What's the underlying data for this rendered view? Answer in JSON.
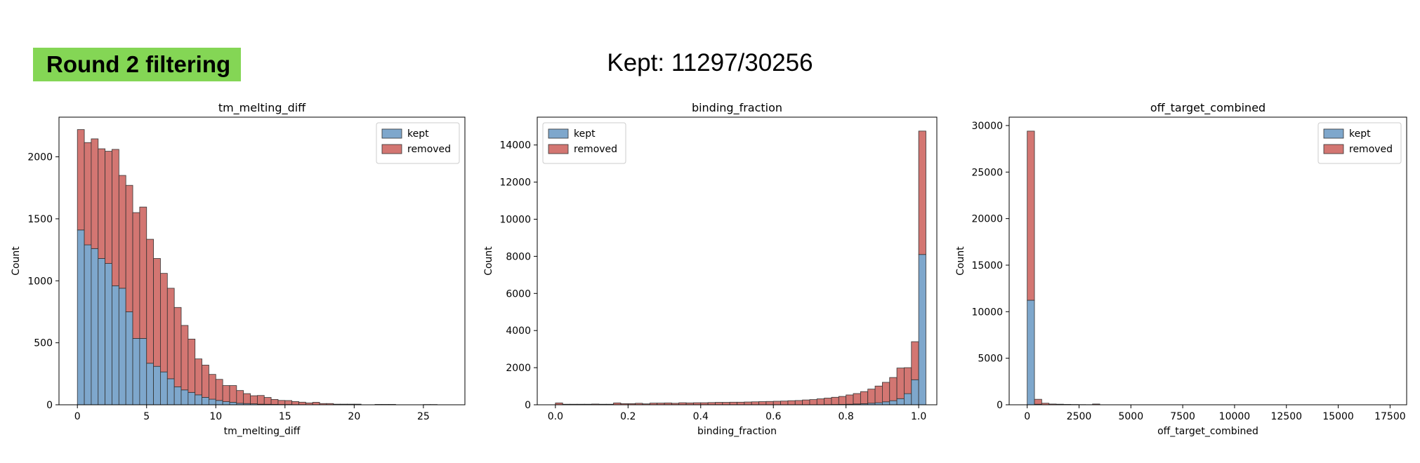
{
  "header": {
    "badge_label": "Round 2 filtering",
    "summary": "Kept: 11297/30256"
  },
  "colors": {
    "kept": "#7ea7cc",
    "removed": "#d37672",
    "edge": "#333333",
    "badge": "#84d655"
  },
  "chart_data": [
    {
      "type": "bar",
      "stacked": true,
      "title": "tm_melting_diff",
      "xlabel": "tm_melting_diff",
      "ylabel": "Count",
      "xlim": [
        -1.33,
        28.0
      ],
      "ylim": [
        0,
        2320
      ],
      "xticks": [
        0,
        5,
        10,
        15,
        20,
        25
      ],
      "yticks": [
        0,
        500,
        1000,
        1500,
        2000
      ],
      "legend": "top-right",
      "bin_start": 0,
      "bin_width": 0.5,
      "series": [
        {
          "name": "kept",
          "values": [
            1410,
            1290,
            1260,
            1180,
            1140,
            960,
            940,
            750,
            535,
            535,
            335,
            310,
            265,
            210,
            145,
            120,
            100,
            80,
            60,
            45,
            35,
            25,
            20,
            12,
            10,
            8,
            5,
            4,
            3,
            2,
            2,
            1,
            1,
            0,
            0,
            0,
            0,
            0,
            0,
            0,
            0,
            0,
            0,
            0,
            0,
            0,
            0,
            0,
            0,
            0,
            0,
            0,
            0,
            0
          ]
        },
        {
          "name": "removed",
          "values": [
            810,
            825,
            885,
            885,
            905,
            1100,
            910,
            1020,
            1015,
            1060,
            1000,
            870,
            795,
            730,
            640,
            520,
            430,
            290,
            260,
            200,
            170,
            130,
            135,
            103,
            80,
            65,
            70,
            55,
            40,
            33,
            32,
            25,
            20,
            15,
            20,
            10,
            10,
            5,
            5,
            5,
            5,
            0,
            0,
            3,
            3,
            3,
            0,
            0,
            0,
            0,
            2,
            2,
            0,
            0
          ]
        }
      ]
    },
    {
      "type": "bar",
      "stacked": true,
      "title": "binding_fraction",
      "xlabel": "binding_fraction",
      "ylabel": "Count",
      "xlim": [
        -0.05,
        1.05
      ],
      "ylim": [
        0,
        15500
      ],
      "xticks": [
        0.0,
        0.2,
        0.4,
        0.6,
        0.8,
        1.0
      ],
      "yticks": [
        0,
        2000,
        4000,
        6000,
        8000,
        10000,
        12000,
        14000
      ],
      "legend": "top-left",
      "bin_start": 0,
      "bin_width": 0.02,
      "series": [
        {
          "name": "kept",
          "values": [
            0,
            0,
            0,
            0,
            0,
            0,
            0,
            0,
            0,
            0,
            0,
            0,
            0,
            0,
            0,
            0,
            0,
            0,
            0,
            0,
            0,
            0,
            0,
            0,
            0,
            0,
            0,
            0,
            0,
            0,
            0,
            0,
            0,
            0,
            0,
            0,
            0,
            10,
            15,
            20,
            30,
            45,
            60,
            85,
            110,
            160,
            220,
            330,
            600,
            1350,
            8100
          ]
        },
        {
          "name": "removed",
          "values": [
            100,
            30,
            30,
            30,
            30,
            40,
            30,
            30,
            100,
            60,
            60,
            80,
            50,
            90,
            90,
            100,
            80,
            110,
            100,
            110,
            110,
            120,
            130,
            130,
            140,
            140,
            150,
            160,
            170,
            180,
            190,
            200,
            220,
            230,
            260,
            280,
            320,
            350,
            390,
            430,
            500,
            560,
            650,
            760,
            900,
            1050,
            1250,
            1650,
            1400,
            2050,
            6650
          ]
        }
      ]
    },
    {
      "type": "bar",
      "stacked": true,
      "title": "off_target_combined",
      "xlabel": "off_target_combined",
      "ylabel": "Count",
      "xlim": [
        -870,
        18300
      ],
      "ylim": [
        0,
        30900
      ],
      "xticks": [
        0,
        2500,
        5000,
        7500,
        10000,
        12500,
        15000,
        17500
      ],
      "yticks": [
        0,
        5000,
        10000,
        15000,
        20000,
        25000,
        30000
      ],
      "legend": "top-right",
      "bin_start": 0,
      "bin_width": 350,
      "series": [
        {
          "name": "kept",
          "values": [
            11230,
            60,
            5,
            2,
            2,
            0,
            0,
            0,
            0,
            2
          ]
        },
        {
          "name": "removed",
          "values": [
            18170,
            530,
            160,
            80,
            60,
            40,
            30,
            20,
            15,
            80
          ]
        }
      ]
    }
  ]
}
